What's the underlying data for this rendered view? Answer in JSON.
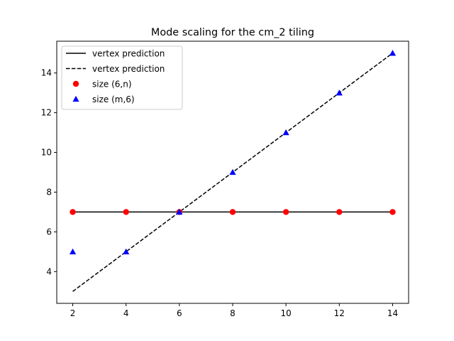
{
  "chart_data": {
    "type": "line",
    "title": "Mode scaling for the cm_2 tiling",
    "xlabel": "",
    "ylabel": "",
    "xlim": [
      1.4,
      14.6
    ],
    "ylim": [
      2.4,
      15.6
    ],
    "xticks": [
      2,
      4,
      6,
      8,
      10,
      12,
      14
    ],
    "yticks": [
      4,
      6,
      8,
      10,
      12,
      14
    ],
    "grid": false,
    "legend_position": "top-left",
    "series": [
      {
        "name": "vertex prediction",
        "kind": "line",
        "line_style": "solid",
        "color": "#000000",
        "x": [
          2,
          14
        ],
        "y": [
          7,
          7
        ]
      },
      {
        "name": "vertex prediction",
        "kind": "line",
        "line_style": "dashed",
        "color": "#000000",
        "x": [
          2,
          14
        ],
        "y": [
          3,
          15
        ]
      },
      {
        "name": "size (6,n)",
        "kind": "scatter",
        "marker": "circle",
        "color": "#ff0000",
        "x": [
          2,
          4,
          6,
          8,
          10,
          12,
          14
        ],
        "y": [
          7,
          7,
          7,
          7,
          7,
          7,
          7
        ]
      },
      {
        "name": "size (m,6)",
        "kind": "scatter",
        "marker": "triangle",
        "color": "#0000ff",
        "x": [
          2,
          4,
          6,
          8,
          10,
          12,
          14
        ],
        "y": [
          5,
          5,
          7,
          9,
          11,
          13,
          15
        ]
      }
    ]
  }
}
